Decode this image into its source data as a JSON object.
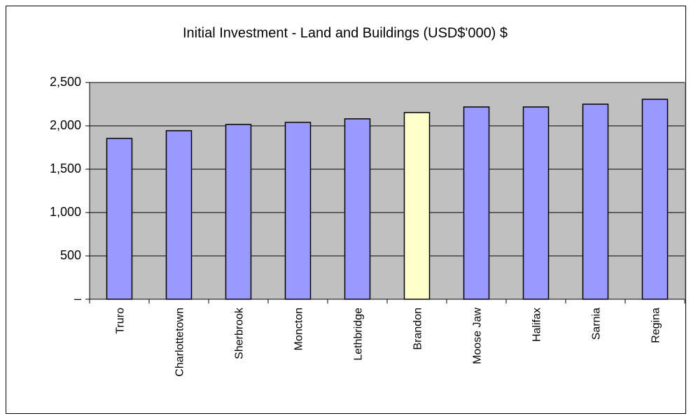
{
  "chart_data": {
    "type": "bar",
    "title": "Initial Investment - Land and Buildings (USD$'000) $",
    "categories": [
      "Truro",
      "Charlottetown",
      "Sherbrook",
      "Moncton",
      "Lethbridge",
      "Brandon",
      "Moose Jaw",
      "Halifax",
      "Sarnia",
      "Regina"
    ],
    "values": [
      1855,
      1944,
      2016,
      2040,
      2081,
      2153,
      2218,
      2218,
      2250,
      2306
    ],
    "colors": [
      "#9999ff",
      "#9999ff",
      "#9999ff",
      "#9999ff",
      "#9999ff",
      "#ffffcc",
      "#9999ff",
      "#9999ff",
      "#9999ff",
      "#9999ff"
    ],
    "ylim": [
      0,
      2500
    ],
    "yticks": [
      {
        "value": 0,
        "label": "–"
      },
      500,
      {
        "value": 1000,
        "label": "1,000"
      },
      {
        "value": 1500,
        "label": "1,500"
      },
      {
        "value": 2000,
        "label": "2,000"
      },
      {
        "value": 2500,
        "label": "2,500"
      }
    ],
    "grid": true
  }
}
